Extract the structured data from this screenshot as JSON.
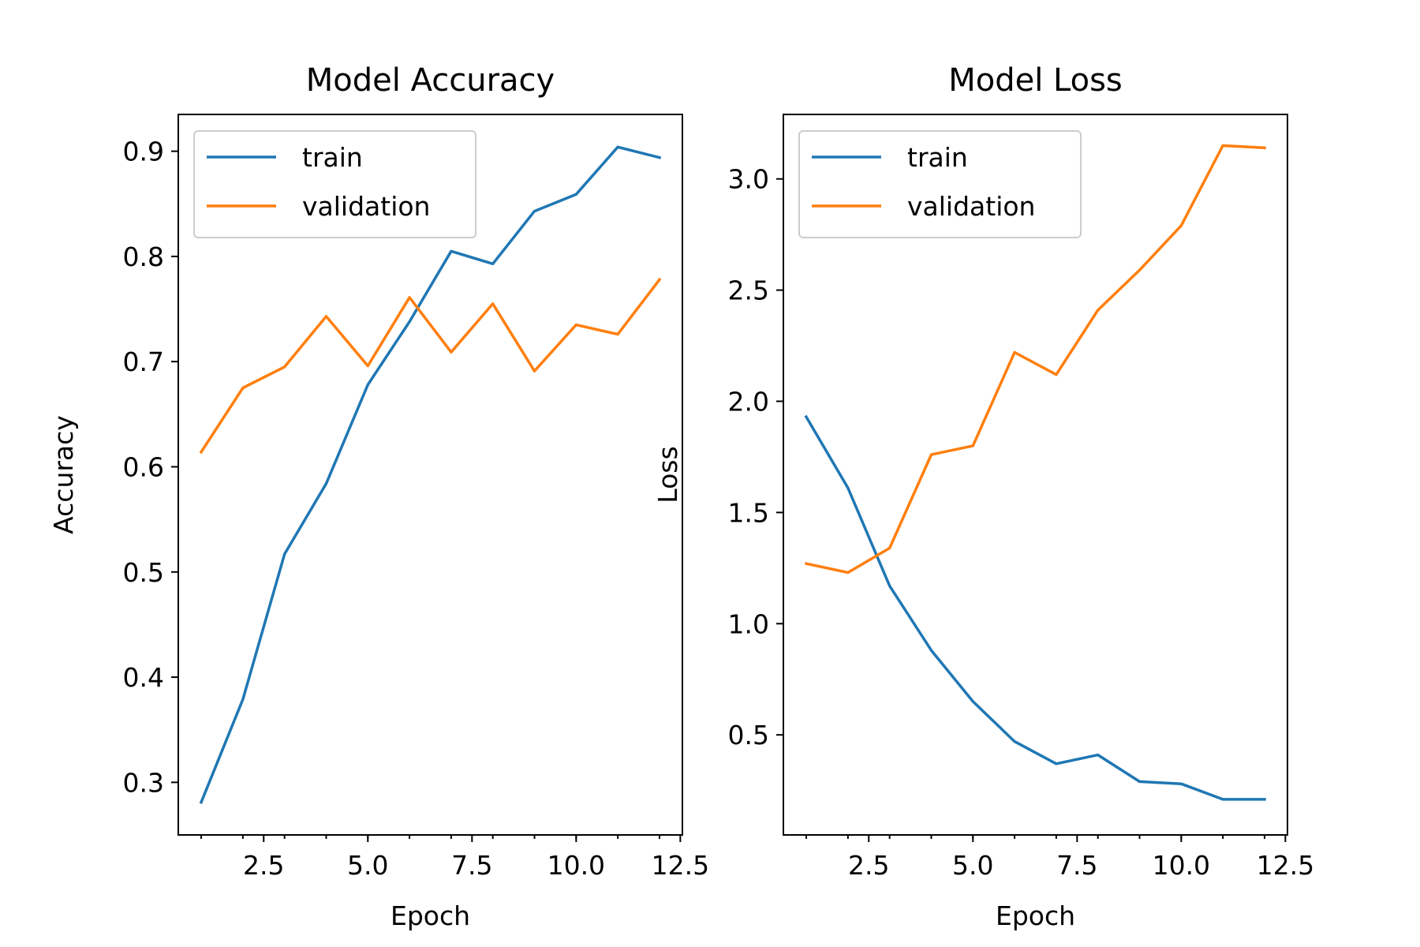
{
  "chart_data": [
    {
      "type": "line",
      "title": "Model Accuracy",
      "xlabel": "Epoch",
      "ylabel": "Accuracy",
      "xlim": [
        0.45,
        12.55
      ],
      "ylim": [
        0.25,
        0.935
      ],
      "xticks": [
        2.5,
        5.0,
        7.5,
        10.0,
        12.5
      ],
      "yticks": [
        0.3,
        0.4,
        0.5,
        0.6,
        0.7,
        0.8,
        0.9
      ],
      "x": [
        1,
        2,
        3,
        4,
        5,
        6,
        7,
        8,
        9,
        10,
        11,
        12
      ],
      "series": [
        {
          "name": "train",
          "color": "#1f77b4",
          "values": [
            0.281,
            0.379,
            0.517,
            0.584,
            0.678,
            0.738,
            0.805,
            0.793,
            0.843,
            0.859,
            0.904,
            0.894
          ]
        },
        {
          "name": "validation",
          "color": "#ff7f0e",
          "values": [
            0.614,
            0.675,
            0.695,
            0.743,
            0.696,
            0.761,
            0.709,
            0.755,
            0.691,
            0.735,
            0.726,
            0.778
          ]
        }
      ],
      "legend": "upper left",
      "grid": false
    },
    {
      "type": "line",
      "title": "Model Loss",
      "xlabel": "Epoch",
      "ylabel": "Loss",
      "xlim": [
        0.45,
        12.55
      ],
      "ylim": [
        0.05,
        3.29
      ],
      "xticks": [
        2.5,
        5.0,
        7.5,
        10.0,
        12.5
      ],
      "yticks": [
        0.5,
        1.0,
        1.5,
        2.0,
        2.5,
        3.0
      ],
      "x": [
        1,
        2,
        3,
        4,
        5,
        6,
        7,
        8,
        9,
        10,
        11,
        12
      ],
      "series": [
        {
          "name": "train",
          "color": "#1f77b4",
          "values": [
            1.93,
            1.61,
            1.17,
            0.88,
            0.65,
            0.47,
            0.37,
            0.41,
            0.29,
            0.28,
            0.21,
            0.21
          ]
        },
        {
          "name": "validation",
          "color": "#ff7f0e",
          "values": [
            1.27,
            1.23,
            1.34,
            1.76,
            1.8,
            2.22,
            2.12,
            2.41,
            2.59,
            2.79,
            3.15,
            3.14
          ]
        }
      ],
      "legend": "upper left",
      "grid": false
    }
  ]
}
